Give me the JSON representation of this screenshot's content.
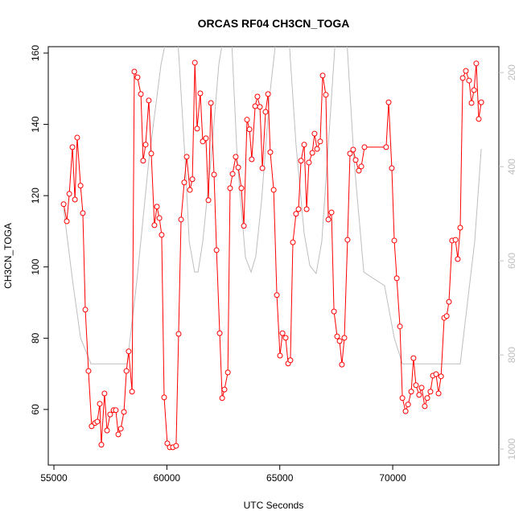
{
  "chart_data": {
    "type": "line",
    "title": "ORCAS RF04 CH3CN_TOGA",
    "x_label": "UTC Seconds",
    "y_label": "CH3CN_TOGA",
    "xlim": [
      54750,
      74700
    ],
    "ylim": [
      44.4,
      161.8
    ],
    "y2lim": [
      1034,
      145
    ],
    "xticks": [
      55000,
      60000,
      65000,
      70000
    ],
    "yticks": [
      60,
      80,
      100,
      120,
      140,
      160
    ],
    "y2ticks": [
      200,
      400,
      600,
      800,
      1000
    ],
    "series": [
      {
        "color": "#bebebe",
        "axis": "y2",
        "x": [
          55430,
          55820,
          56180,
          56640,
          57070,
          58240,
          58670,
          59200,
          59740,
          60090,
          60450,
          60810,
          60990,
          61230,
          61380,
          61590,
          61950,
          62300,
          62590,
          62840,
          63120,
          63480,
          63730,
          63940,
          64190,
          64550,
          64900,
          65370,
          65720,
          66080,
          66330,
          66610,
          66860,
          67150,
          67500,
          67930,
          68290,
          68720,
          69640,
          70070,
          70430,
          72990,
          73630,
          73920
        ],
        "values": [
          490,
          640,
          764,
          819,
          819,
          819,
          644,
          388,
          183,
          100,
          100,
          388,
          559,
          624,
          624,
          559,
          388,
          183,
          100,
          100,
          388,
          593,
          624,
          590,
          474,
          251,
          100,
          100,
          354,
          542,
          610,
          627,
          559,
          354,
          100,
          100,
          388,
          624,
          653,
          764,
          819,
          819,
          559,
          362
        ]
      },
      {
        "color": "#ff0000",
        "axis": "y",
        "x": [
          55430,
          55570,
          55680,
          55820,
          55930,
          56030,
          56180,
          56280,
          56390,
          56530,
          56670,
          56820,
          56920,
          57030,
          57100,
          57240,
          57350,
          57490,
          57640,
          57740,
          57850,
          57960,
          58100,
          58210,
          58310,
          58460,
          58560,
          58700,
          58850,
          58950,
          59060,
          59200,
          59310,
          59450,
          59560,
          59670,
          59770,
          59880,
          60020,
          60130,
          60270,
          60410,
          60520,
          60630,
          60770,
          60880,
          61020,
          61130,
          61240,
          61340,
          61480,
          61590,
          61730,
          61840,
          61950,
          62090,
          62200,
          62340,
          62450,
          62550,
          62700,
          62800,
          62910,
          63050,
          63160,
          63300,
          63410,
          63550,
          63660,
          63760,
          63910,
          64010,
          64120,
          64230,
          64370,
          64480,
          64580,
          64730,
          64870,
          65010,
          65120,
          65260,
          65370,
          65470,
          65580,
          65720,
          65830,
          65940,
          66080,
          66190,
          66290,
          66440,
          66540,
          66650,
          66790,
          66900,
          67040,
          67150,
          67290,
          67400,
          67540,
          67650,
          67750,
          67860,
          68000,
          68110,
          68250,
          68360,
          68500,
          68610,
          68750,
          69710,
          69820,
          69960,
          70070,
          70180,
          70320,
          70430,
          70570,
          70680,
          70820,
          70920,
          71030,
          71170,
          71280,
          71420,
          71530,
          71670,
          71780,
          71920,
          72030,
          72140,
          72280,
          72390,
          72490,
          72630,
          72780,
          72880,
          72990,
          73100,
          73240,
          73380,
          73490,
          73600,
          73700,
          73810,
          73920
        ],
        "values": [
          117.6,
          112.8,
          120.5,
          133.6,
          118.9,
          136.3,
          122.8,
          115.1,
          88.0,
          70.8,
          55.3,
          56.2,
          56.6,
          61.6,
          50.1,
          64.5,
          54.1,
          58.6,
          59.8,
          59.8,
          53.0,
          54.6,
          59.3,
          70.8,
          76.3,
          65.0,
          154.8,
          153.2,
          148.5,
          129.8,
          134.3,
          146.7,
          131.8,
          111.7,
          116.9,
          113.7,
          109.0,
          63.4,
          50.5,
          49.4,
          49.4,
          49.8,
          81.2,
          113.3,
          123.7,
          130.9,
          121.6,
          124.6,
          157.3,
          138.8,
          148.7,
          135.2,
          136.1,
          118.7,
          146.0,
          125.9,
          104.7,
          81.4,
          63.2,
          65.6,
          70.4,
          122.1,
          126.1,
          130.9,
          127.9,
          122.1,
          111.5,
          141.3,
          138.6,
          130.2,
          145.1,
          147.8,
          144.9,
          127.7,
          143.5,
          148.5,
          132.2,
          121.6,
          92.1,
          75.1,
          81.4,
          80.1,
          72.9,
          73.8,
          106.9,
          114.9,
          116.2,
          129.8,
          134.3,
          116.2,
          129.3,
          132.0,
          137.4,
          133.1,
          135.2,
          153.7,
          148.3,
          113.3,
          115.3,
          87.5,
          80.5,
          79.2,
          72.6,
          80.1,
          107.6,
          131.8,
          132.9,
          130.0,
          127.0,
          128.2,
          133.6,
          133.6,
          146.2,
          127.7,
          107.4,
          96.8,
          83.3,
          63.2,
          59.5,
          61.4,
          65.0,
          74.4,
          66.8,
          64.1,
          66.1,
          60.9,
          63.2,
          65.0,
          69.5,
          69.9,
          64.5,
          69.3,
          85.7,
          86.2,
          90.2,
          107.4,
          107.6,
          102.2,
          111.0,
          153.0,
          155.0,
          152.3,
          146.0,
          149.6,
          157.1,
          141.5,
          146.2
        ]
      }
    ]
  }
}
